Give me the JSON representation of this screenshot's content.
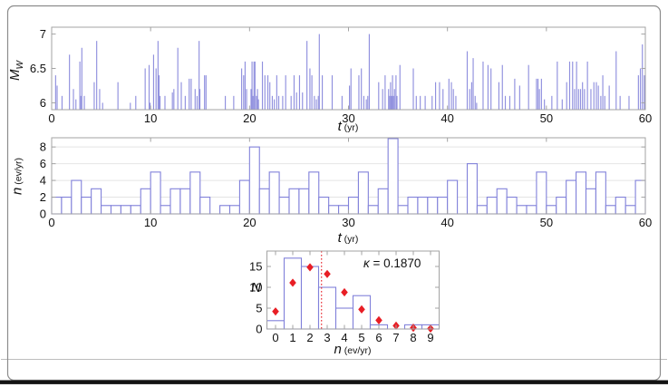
{
  "figure": {
    "background": "#ffffff",
    "border_color": "#8c8c8c",
    "rule_color": "#bdbdbd",
    "bottom_bar_color": "#141414"
  },
  "colors": {
    "series_blue": "#8181da",
    "axis_gray": "#a3a3a3",
    "grid_gray": "#e4e4e4",
    "marker_red": "#e81e25",
    "text_black": "#111111"
  },
  "labels": {
    "c1_y_main": "M",
    "c1_y_sub": "W",
    "c1_x_main": "t",
    "c1_x_unit": " (yr)",
    "c2_y_main": "n",
    "c2_y_unit": " (ev/yr)",
    "c2_x_main": "t",
    "c2_x_unit": " (yr)",
    "c3_y_main": "N",
    "c3_x_main": "n",
    "c3_x_unit": " (ev/yr)",
    "c3_annotation_symbol": "κ",
    "c3_annotation_rest": " = 0.1870"
  },
  "chart_data": [
    {
      "id": "magnitude-stem",
      "type": "stem",
      "xlabel": "t (yr)",
      "ylabel": "M_W",
      "xlim": [
        0,
        60
      ],
      "ylim": [
        5.9,
        7.1
      ],
      "xticks": [
        0,
        10,
        20,
        30,
        40,
        50,
        60
      ],
      "yticks": [
        6,
        6.5,
        7
      ],
      "ytick_labels": [
        "6",
        "6.5",
        "7"
      ],
      "grid": false,
      "events": [
        [
          0.4,
          6.4
        ],
        [
          0.55,
          6.25
        ],
        [
          1.05,
          6.1
        ],
        [
          1.8,
          6.7
        ],
        [
          2.2,
          6.2
        ],
        [
          2.45,
          6.05
        ],
        [
          2.85,
          6.6
        ],
        [
          2.95,
          6.1
        ],
        [
          3.05,
          6.8
        ],
        [
          3.3,
          6.1
        ],
        [
          4.3,
          6.3
        ],
        [
          4.55,
          6.9
        ],
        [
          4.85,
          6.2
        ],
        [
          5.15,
          6.0
        ],
        [
          6.7,
          6.3
        ],
        [
          7.95,
          6.0
        ],
        [
          8.5,
          6.1
        ],
        [
          9.45,
          6.5
        ],
        [
          9.85,
          6.55
        ],
        [
          9.95,
          6.0
        ],
        [
          10.3,
          6.7
        ],
        [
          10.55,
          6.5
        ],
        [
          10.75,
          6.9
        ],
        [
          10.85,
          6.4
        ],
        [
          10.95,
          6.1
        ],
        [
          11.45,
          6.1
        ],
        [
          12.2,
          6.15
        ],
        [
          12.35,
          6.2
        ],
        [
          12.75,
          6.8
        ],
        [
          13.1,
          6.3
        ],
        [
          13.5,
          6.1
        ],
        [
          13.9,
          6.35
        ],
        [
          14.1,
          6.35
        ],
        [
          14.5,
          6.2
        ],
        [
          14.7,
          6.1
        ],
        [
          14.9,
          6.9
        ],
        [
          14.98,
          6.2
        ],
        [
          15.45,
          6.4
        ],
        [
          15.6,
          6.4
        ],
        [
          17.55,
          6.1
        ],
        [
          18.4,
          6.1
        ],
        [
          19.2,
          6.5
        ],
        [
          19.4,
          6.4
        ],
        [
          19.55,
          6.6
        ],
        [
          19.7,
          6.2
        ],
        [
          20.15,
          6.2
        ],
        [
          20.25,
          6.6
        ],
        [
          20.35,
          6.1
        ],
        [
          20.45,
          6.6
        ],
        [
          20.55,
          6.6
        ],
        [
          20.7,
          6.1
        ],
        [
          20.8,
          6.2
        ],
        [
          20.9,
          6.05
        ],
        [
          21.3,
          6.6
        ],
        [
          21.55,
          6.4
        ],
        [
          21.85,
          6.4
        ],
        [
          22.05,
          6.3
        ],
        [
          22.3,
          6.1
        ],
        [
          22.5,
          6.05
        ],
        [
          22.75,
          6.4
        ],
        [
          22.95,
          6.1
        ],
        [
          23.35,
          6.1
        ],
        [
          23.65,
          6.4
        ],
        [
          24.2,
          6.1
        ],
        [
          24.5,
          6.4
        ],
        [
          24.75,
          6.15
        ],
        [
          25.05,
          6.4
        ],
        [
          25.35,
          6.15
        ],
        [
          25.8,
          6.9
        ],
        [
          26.1,
          6.5
        ],
        [
          26.3,
          6.4
        ],
        [
          26.55,
          6.1
        ],
        [
          26.75,
          6.05
        ],
        [
          26.95,
          6.1
        ],
        [
          27.05,
          7.0
        ],
        [
          27.35,
          6.4
        ],
        [
          28.35,
          6.4
        ],
        [
          29.35,
          6.1
        ],
        [
          30.1,
          6.25
        ],
        [
          30.25,
          6.5
        ],
        [
          31.05,
          6.4
        ],
        [
          31.3,
          6.5
        ],
        [
          31.55,
          6.1
        ],
        [
          31.8,
          6.05
        ],
        [
          31.95,
          6.1
        ],
        [
          32.1,
          7.0
        ],
        [
          33.05,
          6.3
        ],
        [
          33.45,
          6.2
        ],
        [
          33.7,
          6.4
        ],
        [
          34.05,
          6.2
        ],
        [
          34.15,
          6.1
        ],
        [
          34.25,
          6.3
        ],
        [
          34.35,
          6.1
        ],
        [
          34.45,
          6.4
        ],
        [
          34.55,
          6.1
        ],
        [
          34.65,
          6.2
        ],
        [
          34.8,
          6.4
        ],
        [
          34.9,
          6.1
        ],
        [
          35.2,
          6.55
        ],
        [
          36.55,
          6.5
        ],
        [
          36.85,
          6.1
        ],
        [
          37.25,
          6.1
        ],
        [
          37.75,
          6.1
        ],
        [
          38.45,
          6.1
        ],
        [
          38.8,
          6.3
        ],
        [
          39.2,
          6.3
        ],
        [
          39.55,
          6.2
        ],
        [
          40.15,
          6.35
        ],
        [
          40.4,
          6.3
        ],
        [
          40.6,
          6.2
        ],
        [
          40.85,
          6.1
        ],
        [
          42.0,
          6.75
        ],
        [
          42.25,
          6.2
        ],
        [
          42.45,
          6.3
        ],
        [
          42.6,
          6.65
        ],
        [
          42.8,
          6.1
        ],
        [
          42.95,
          6.0
        ],
        [
          43.6,
          6.6
        ],
        [
          44.1,
          6.55
        ],
        [
          44.4,
          6.5
        ],
        [
          45.2,
          6.3
        ],
        [
          45.55,
          6.55
        ],
        [
          45.85,
          6.1
        ],
        [
          46.3,
          6.1
        ],
        [
          46.8,
          6.35
        ],
        [
          47.3,
          6.25
        ],
        [
          48.2,
          6.55
        ],
        [
          49.0,
          6.35
        ],
        [
          49.15,
          6.35
        ],
        [
          49.3,
          6.2
        ],
        [
          49.5,
          6.35
        ],
        [
          49.8,
          6.05
        ],
        [
          50.55,
          6.1
        ],
        [
          51.1,
          6.6
        ],
        [
          51.6,
          6.05
        ],
        [
          52.05,
          6.3
        ],
        [
          52.35,
          6.6
        ],
        [
          52.65,
          6.6
        ],
        [
          52.85,
          6.2
        ],
        [
          53.05,
          6.6
        ],
        [
          53.25,
          6.2
        ],
        [
          53.45,
          6.2
        ],
        [
          53.65,
          6.3
        ],
        [
          53.85,
          6.2
        ],
        [
          54.15,
          6.6
        ],
        [
          54.5,
          6.2
        ],
        [
          54.8,
          6.3
        ],
        [
          55.05,
          6.3
        ],
        [
          55.25,
          6.25
        ],
        [
          55.5,
          6.1
        ],
        [
          55.7,
          6.4
        ],
        [
          55.9,
          6.1
        ],
        [
          56.35,
          6.25
        ],
        [
          57.05,
          6.75
        ],
        [
          57.45,
          6.1
        ],
        [
          58.35,
          6.1
        ],
        [
          59.3,
          6.4
        ],
        [
          59.5,
          6.5
        ],
        [
          59.7,
          6.85
        ],
        [
          59.9,
          6.4
        ]
      ]
    },
    {
      "id": "annual-rate-histogram",
      "type": "bar",
      "xlabel": "t (yr)",
      "ylabel": "n (ev/yr)",
      "xlim": [
        0,
        60
      ],
      "ylim": [
        0,
        9.1
      ],
      "xticks": [
        0,
        10,
        20,
        30,
        40,
        50,
        60
      ],
      "yticks": [
        0,
        2,
        4,
        6,
        8
      ],
      "grid": true,
      "bin_width": 1,
      "values": [
        2,
        2,
        4,
        2,
        3,
        1,
        1,
        1,
        1,
        3,
        5,
        1,
        3,
        3,
        5,
        2,
        0,
        1,
        1,
        4,
        8,
        3,
        5,
        2,
        3,
        3,
        5,
        2,
        1,
        1,
        2,
        5,
        1,
        3,
        9,
        1,
        2,
        2,
        2,
        2,
        4,
        0,
        6,
        1,
        2,
        3,
        2,
        1,
        1,
        5,
        1,
        2,
        4,
        5,
        3,
        5,
        1,
        2,
        1,
        4
      ]
    },
    {
      "id": "rate-distribution",
      "type": "bar+scatter",
      "xlabel": "n (ev/yr)",
      "ylabel": "N",
      "xlim": [
        -0.5,
        9.5
      ],
      "ylim": [
        0,
        18.7
      ],
      "xticks": [
        0,
        1,
        2,
        3,
        4,
        5,
        6,
        7,
        8,
        9
      ],
      "yticks": [
        0,
        5,
        10,
        15
      ],
      "grid": false,
      "categories": [
        0,
        1,
        2,
        3,
        4,
        5,
        6,
        7,
        8,
        9
      ],
      "bar_values": [
        2,
        17,
        15,
        10,
        5,
        8,
        1,
        0,
        1,
        1
      ],
      "marker_values": [
        4.2,
        11.1,
        14.8,
        13.2,
        8.8,
        4.7,
        2.1,
        0.8,
        0.3,
        0.1
      ],
      "marker_style": "red-diamond",
      "vline_x": 2.67,
      "annotation": "κ = 0.1870",
      "kappa_value": 0.187
    }
  ]
}
